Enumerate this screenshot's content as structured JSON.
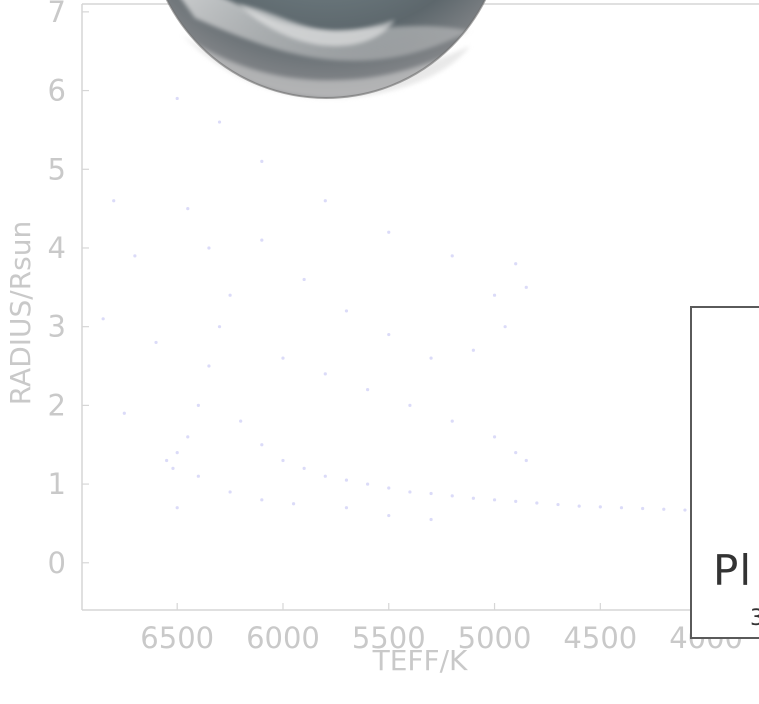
{
  "chart_data": {
    "type": "scatter",
    "title": "",
    "xlabel": "TEFF/K",
    "ylabel": "RADIUS/Rsun",
    "x_reversed": true,
    "xlim": [
      6950,
      3750
    ],
    "ylim": [
      -0.6,
      7.1
    ],
    "x_ticks": [
      "6500",
      "6000",
      "5500",
      "5000",
      "4500",
      "4000"
    ],
    "x_tick_values": [
      6500,
      6000,
      5500,
      5000,
      4500,
      4000
    ],
    "y_ticks": [
      "0",
      "1",
      "2",
      "3",
      "4",
      "5",
      "6",
      "7"
    ],
    "y_tick_values": [
      0,
      1,
      2,
      3,
      4,
      5,
      6,
      7
    ],
    "point_color": "#bdbdf2",
    "grid": false,
    "series": [
      {
        "values_description_free": true,
        "points": [
          [
            6500,
            1.4
          ],
          [
            6450,
            1.6
          ],
          [
            6400,
            2.0
          ],
          [
            6350,
            2.5
          ],
          [
            6300,
            3.0
          ],
          [
            6250,
            3.4
          ],
          [
            6200,
            1.8
          ],
          [
            6100,
            1.5
          ],
          [
            6000,
            1.3
          ],
          [
            5900,
            1.2
          ],
          [
            5800,
            1.1
          ],
          [
            5700,
            1.05
          ],
          [
            5600,
            1.0
          ],
          [
            5500,
            0.95
          ],
          [
            5400,
            0.9
          ],
          [
            5300,
            0.88
          ],
          [
            5200,
            0.85
          ],
          [
            5100,
            0.82
          ],
          [
            5000,
            0.8
          ],
          [
            4900,
            0.78
          ],
          [
            4800,
            0.76
          ],
          [
            4700,
            0.74
          ],
          [
            4600,
            0.72
          ],
          [
            4500,
            0.71
          ],
          [
            4400,
            0.7
          ],
          [
            4300,
            0.69
          ],
          [
            4200,
            0.68
          ],
          [
            4100,
            0.67
          ],
          [
            4000,
            0.66
          ],
          [
            6000,
            2.6
          ],
          [
            5800,
            2.4
          ],
          [
            5600,
            2.2
          ],
          [
            5400,
            2.0
          ],
          [
            5200,
            1.8
          ],
          [
            5000,
            1.6
          ],
          [
            4900,
            1.4
          ],
          [
            4850,
            1.3
          ],
          [
            5000,
            3.4
          ],
          [
            4900,
            3.8
          ],
          [
            5200,
            3.9
          ],
          [
            5500,
            4.2
          ],
          [
            5800,
            4.6
          ],
          [
            6100,
            5.1
          ],
          [
            6300,
            5.6
          ],
          [
            6500,
            5.9
          ],
          [
            6450,
            4.5
          ],
          [
            6350,
            4.0
          ],
          [
            6100,
            4.1
          ],
          [
            5900,
            3.6
          ],
          [
            5700,
            3.2
          ],
          [
            5500,
            2.9
          ],
          [
            5300,
            2.6
          ],
          [
            5100,
            2.7
          ],
          [
            4950,
            3.0
          ],
          [
            4850,
            3.5
          ],
          [
            6550,
            1.3
          ],
          [
            6520,
            1.2
          ],
          [
            6400,
            1.1
          ],
          [
            6250,
            0.9
          ],
          [
            6100,
            0.8
          ],
          [
            5950,
            0.75
          ],
          [
            5700,
            0.7
          ],
          [
            5500,
            0.6
          ],
          [
            5300,
            0.55
          ],
          [
            6500,
            0.7
          ],
          [
            6600,
            2.8
          ],
          [
            6700,
            3.9
          ],
          [
            6800,
            4.6
          ],
          [
            6850,
            3.1
          ],
          [
            6750,
            1.9
          ]
        ]
      }
    ]
  },
  "overlay": {
    "text": "Pl",
    "subtext": "3"
  }
}
